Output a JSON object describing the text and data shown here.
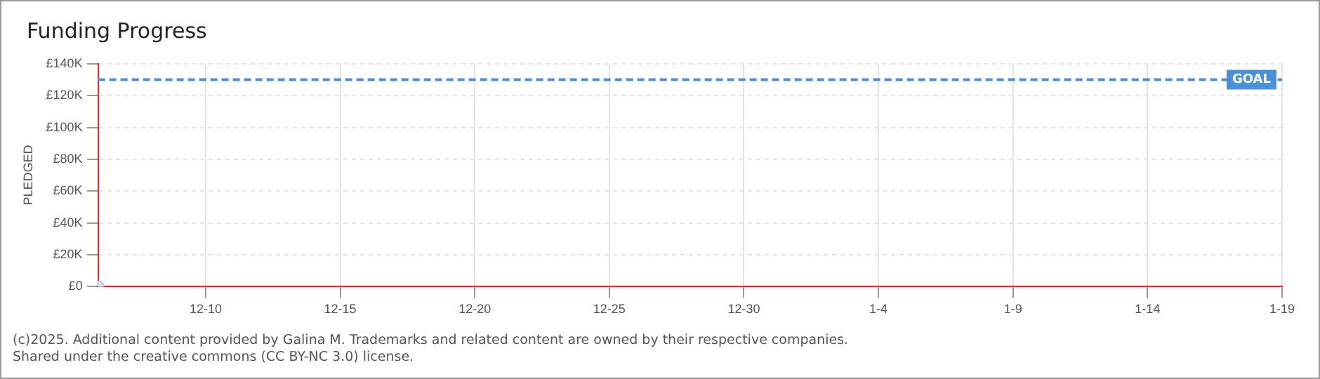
{
  "chart_data": {
    "type": "scatter",
    "title": "Funding Progress",
    "ylabel": "PLEDGED",
    "x": [
      "2024-12-06"
    ],
    "series": [
      {
        "color": "#a8c8e8",
        "values": [
          0
        ]
      }
    ],
    "xlim": [
      "2024-12-06",
      "2025-01-19"
    ],
    "xticks": [
      {
        "value": "2024-12-10",
        "label": "12-10"
      },
      {
        "value": "2024-12-15",
        "label": "12-15"
      },
      {
        "value": "2024-12-20",
        "label": "12-20"
      },
      {
        "value": "2024-12-25",
        "label": "12-25"
      },
      {
        "value": "2024-12-30",
        "label": "12-30"
      },
      {
        "value": "2025-01-04",
        "label": "1-4"
      },
      {
        "value": "2025-01-09",
        "label": "1-9"
      },
      {
        "value": "2025-01-14",
        "label": "1-14"
      },
      {
        "value": "2025-01-19",
        "label": "1-19"
      }
    ],
    "ylim": [
      0,
      140000
    ],
    "yticks": [
      {
        "value": 0,
        "label": "£0"
      },
      {
        "value": 20000,
        "label": "£20K"
      },
      {
        "value": 40000,
        "label": "£40K"
      },
      {
        "value": 60000,
        "label": "£60K"
      },
      {
        "value": 80000,
        "label": "£80K"
      },
      {
        "value": 100000,
        "label": "£100K"
      },
      {
        "value": 120000,
        "label": "£120K"
      },
      {
        "value": 140000,
        "label": "£140K"
      }
    ],
    "ref_lines": [
      {
        "axis": "y",
        "value": 130000,
        "label": "GOAL",
        "color": "#4a90d9",
        "line_style": "dashed"
      }
    ],
    "grid": true,
    "marker": "circle",
    "annotations": [
      "(c)2025. Additional content provided by Galina M. Trademarks and related content are owned by their respective companies.",
      "Shared under the creative commons (CC BY-NC 3.0) license."
    ]
  }
}
